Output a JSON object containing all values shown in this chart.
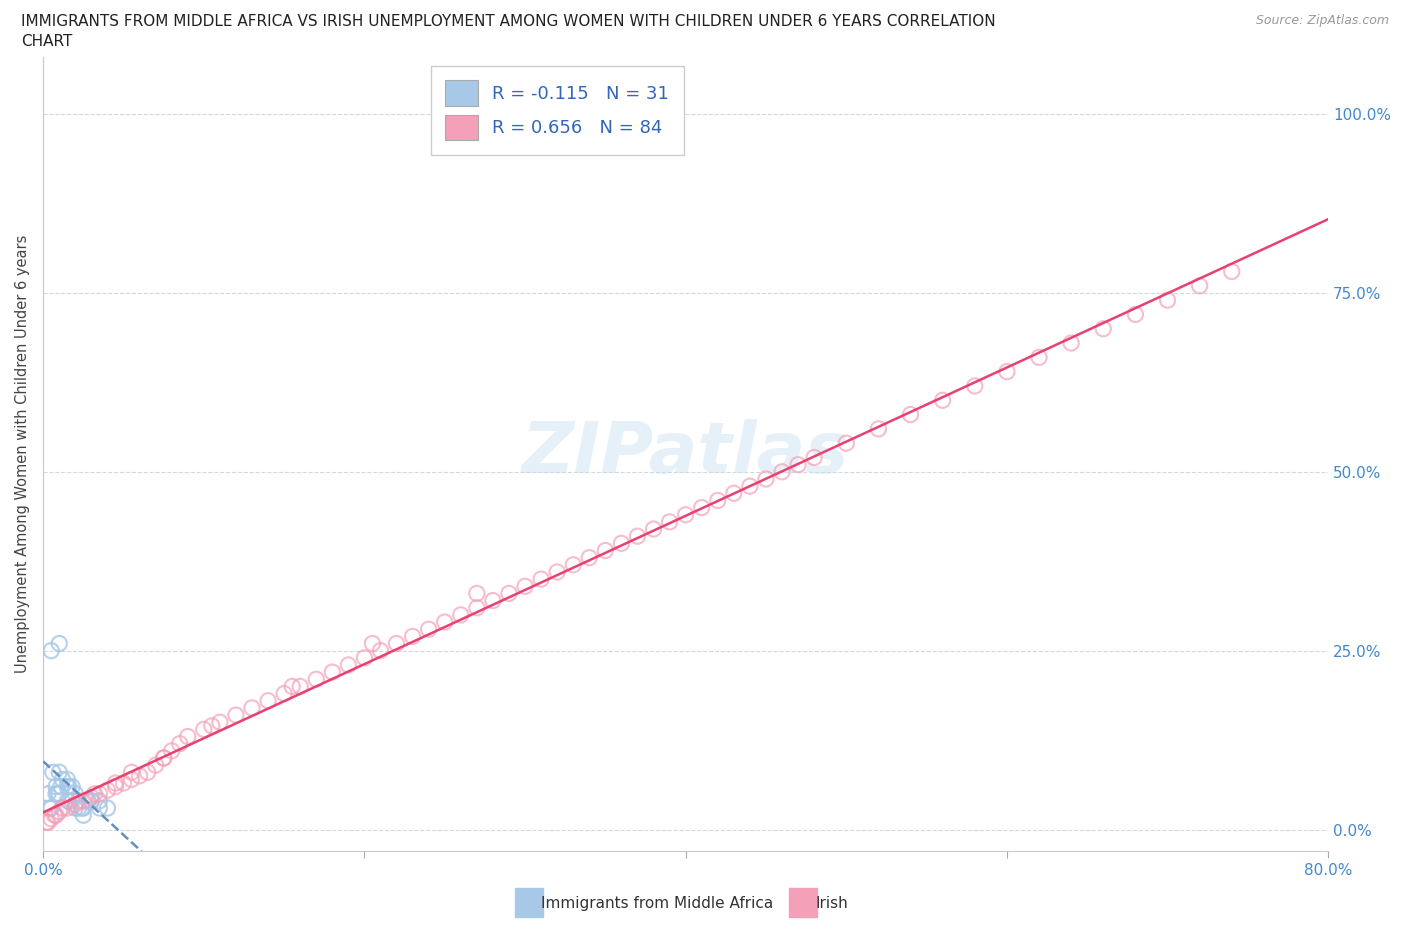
{
  "title_line1": "IMMIGRANTS FROM MIDDLE AFRICA VS IRISH UNEMPLOYMENT AMONG WOMEN WITH CHILDREN UNDER 6 YEARS CORRELATION",
  "title_line2": "CHART",
  "source": "Source: ZipAtlas.com",
  "ylabel_label": "Unemployment Among Women with Children Under 6 years",
  "legend_label1": "Immigrants from Middle Africa",
  "legend_label2": "Irish",
  "R1": -0.115,
  "N1": 31,
  "R2": 0.656,
  "N2": 84,
  "color_blue": "#a8c8e8",
  "color_pink": "#f4a0b8",
  "line_blue_color": "#6090c0",
  "line_pink_color": "#e84070",
  "blue_x": [
    0.5,
    1.0,
    1.5,
    0.8,
    1.2,
    2.0,
    2.5,
    3.0,
    3.5,
    1.0,
    1.5,
    2.0,
    0.5,
    1.0,
    2.5,
    3.0,
    0.8,
    1.8,
    2.2,
    1.5,
    2.8,
    0.3,
    0.6,
    1.1,
    1.8,
    0.4,
    0.9,
    1.6,
    2.4,
    3.5,
    4.0
  ],
  "blue_y": [
    3.0,
    5.0,
    4.0,
    6.0,
    7.0,
    3.0,
    2.0,
    4.0,
    3.0,
    8.0,
    6.0,
    5.0,
    25.0,
    26.0,
    3.0,
    4.0,
    5.0,
    6.0,
    3.0,
    7.0,
    4.0,
    5.0,
    8.0,
    6.0,
    4.0,
    3.0,
    5.0,
    6.0,
    3.0,
    4.0,
    3.0
  ],
  "pink_x": [
    0.2,
    0.5,
    0.8,
    1.0,
    1.5,
    2.0,
    2.5,
    3.0,
    3.5,
    4.0,
    4.5,
    5.0,
    5.5,
    6.0,
    6.5,
    7.0,
    7.5,
    8.0,
    8.5,
    9.0,
    10.0,
    11.0,
    12.0,
    13.0,
    14.0,
    15.0,
    16.0,
    17.0,
    18.0,
    19.0,
    20.0,
    21.0,
    22.0,
    23.0,
    24.0,
    25.0,
    26.0,
    27.0,
    28.0,
    29.0,
    30.0,
    31.0,
    32.0,
    33.0,
    34.0,
    35.0,
    36.0,
    37.0,
    38.0,
    39.0,
    40.0,
    41.0,
    42.0,
    43.0,
    44.0,
    45.0,
    46.0,
    47.0,
    48.0,
    50.0,
    52.0,
    54.0,
    56.0,
    58.0,
    60.0,
    62.0,
    64.0,
    66.0,
    68.0,
    70.0,
    72.0,
    74.0,
    0.3,
    0.7,
    1.2,
    2.2,
    3.2,
    4.5,
    5.5,
    7.5,
    10.5,
    15.5,
    20.5,
    27.0
  ],
  "pink_y": [
    1.0,
    1.5,
    2.0,
    2.5,
    3.0,
    3.5,
    4.0,
    4.5,
    5.0,
    5.5,
    6.0,
    6.5,
    7.0,
    7.5,
    8.0,
    9.0,
    10.0,
    11.0,
    12.0,
    13.0,
    14.0,
    15.0,
    16.0,
    17.0,
    18.0,
    19.0,
    20.0,
    21.0,
    22.0,
    23.0,
    24.0,
    25.0,
    26.0,
    27.0,
    28.0,
    29.0,
    30.0,
    31.0,
    32.0,
    33.0,
    34.0,
    35.0,
    36.0,
    37.0,
    38.0,
    39.0,
    40.0,
    41.0,
    42.0,
    43.0,
    44.0,
    45.0,
    46.0,
    47.0,
    48.0,
    49.0,
    50.0,
    51.0,
    52.0,
    54.0,
    56.0,
    58.0,
    60.0,
    62.0,
    64.0,
    66.0,
    68.0,
    70.0,
    72.0,
    74.0,
    76.0,
    78.0,
    1.0,
    2.0,
    3.0,
    4.0,
    5.0,
    6.5,
    8.0,
    10.0,
    14.5,
    20.0,
    26.0,
    33.0
  ],
  "xlim_pct": [
    0,
    80
  ],
  "ylim_pct": [
    -3,
    108
  ],
  "x_ticks_pct": [
    0,
    20,
    40,
    60,
    80
  ],
  "y_ticks_pct": [
    0,
    25,
    50,
    75,
    100
  ],
  "figsize": [
    14.06,
    9.3
  ],
  "dpi": 100
}
